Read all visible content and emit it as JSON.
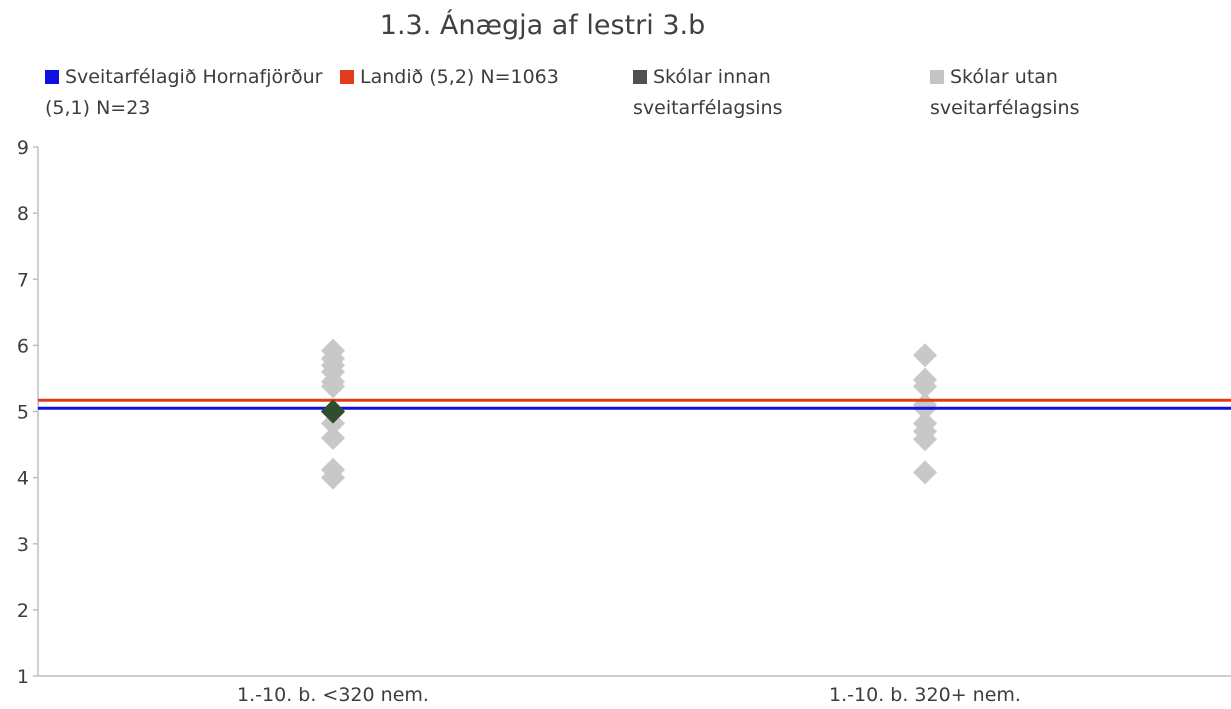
{
  "chart_data": {
    "type": "scatter",
    "title": "1.3. Ánægja af lestri 3.b",
    "xlabel": "",
    "ylabel": "",
    "categories": [
      "1.-10. b. <320 nem.",
      "1.-10. b. 320+ nem."
    ],
    "ylim": [
      1,
      9
    ],
    "yticks": [
      1,
      2,
      3,
      4,
      5,
      6,
      7,
      8,
      9
    ],
    "grid": false,
    "legend_placement": "top",
    "legend": [
      {
        "label": "Sveitarfélagið Hornafjörður (5,1) N=23",
        "color": "#1010e0",
        "shape": "square"
      },
      {
        "label": "Landið (5,2) N=1063",
        "color": "#e03c1c",
        "shape": "square"
      },
      {
        "label": "Skólar innan sveitarfélagsins",
        "color": "#505050",
        "shape": "square"
      },
      {
        "label": "Skólar utan sveitarfélagsins",
        "color": "#c4c4c4",
        "shape": "square"
      }
    ],
    "reference_lines": [
      {
        "legend_index": 0,
        "value": 5.05,
        "color": "#1010e0"
      },
      {
        "legend_index": 1,
        "value": 5.17,
        "color": "#e03c1c"
      }
    ],
    "series": [
      {
        "legend_index": 3,
        "color": "#c8c8c8",
        "marker": "diamond",
        "points": [
          {
            "category": 0,
            "y": 5.92
          },
          {
            "category": 0,
            "y": 5.8
          },
          {
            "category": 0,
            "y": 5.7
          },
          {
            "category": 0,
            "y": 5.6
          },
          {
            "category": 0,
            "y": 5.45
          },
          {
            "category": 0,
            "y": 5.38
          },
          {
            "category": 0,
            "y": 5.0
          },
          {
            "category": 0,
            "y": 4.82
          },
          {
            "category": 0,
            "y": 4.6
          },
          {
            "category": 0,
            "y": 4.12
          },
          {
            "category": 0,
            "y": 4.0
          },
          {
            "category": 1,
            "y": 5.85
          },
          {
            "category": 1,
            "y": 5.48
          },
          {
            "category": 1,
            "y": 5.38
          },
          {
            "category": 1,
            "y": 5.1
          },
          {
            "category": 1,
            "y": 5.05
          },
          {
            "category": 1,
            "y": 4.82
          },
          {
            "category": 1,
            "y": 4.7
          },
          {
            "category": 1,
            "y": 4.58
          },
          {
            "category": 1,
            "y": 4.08
          }
        ]
      },
      {
        "legend_index": 2,
        "color": "#2d4f2d",
        "marker": "diamond",
        "points": [
          {
            "category": 0,
            "y": 5.0
          }
        ]
      }
    ]
  }
}
